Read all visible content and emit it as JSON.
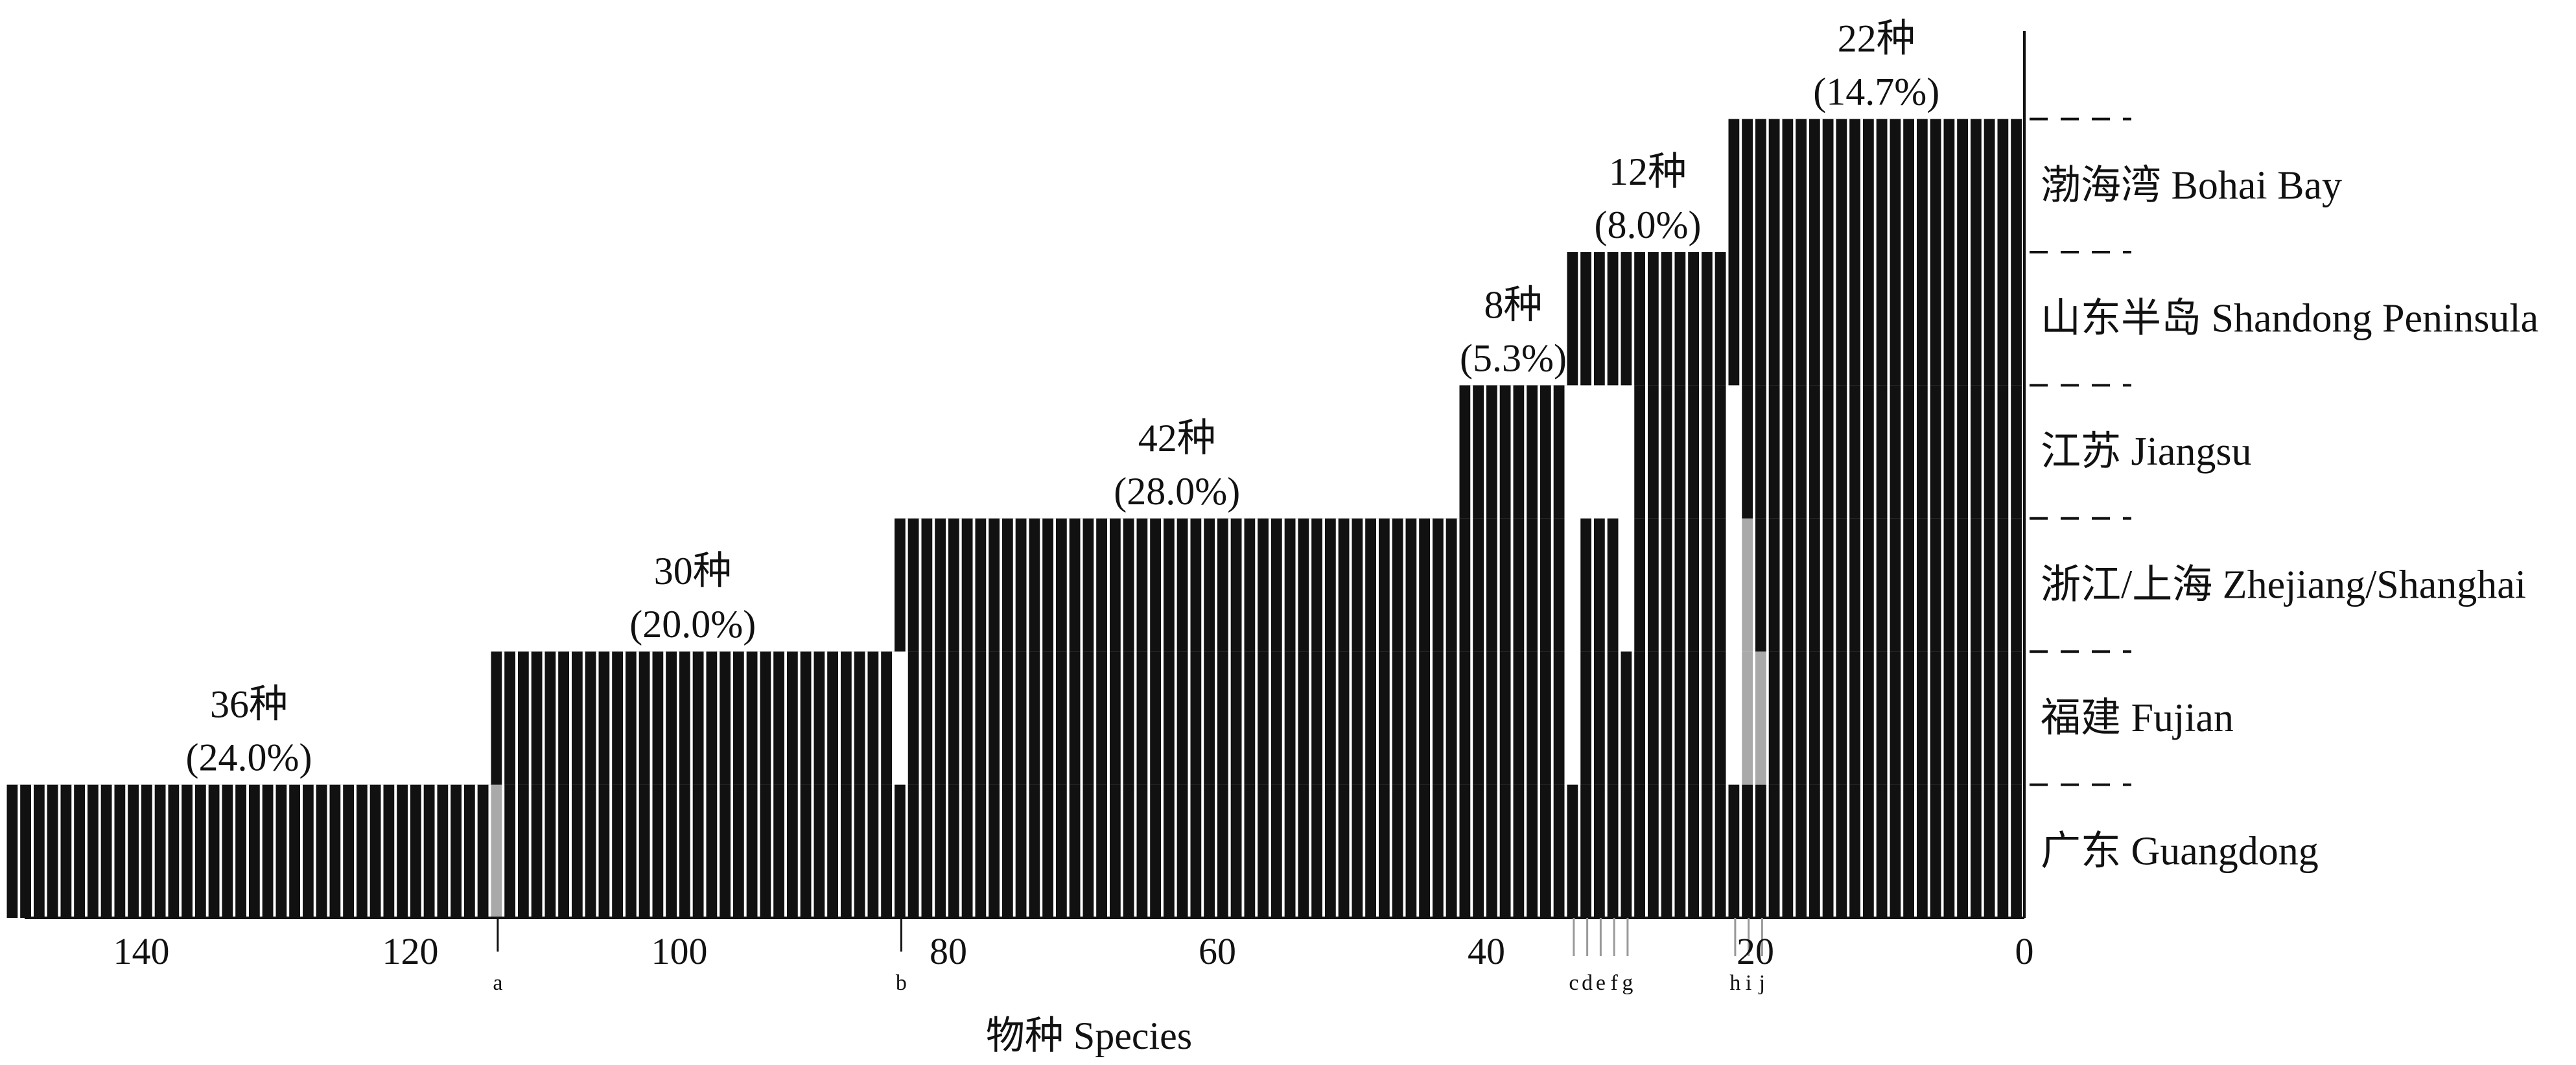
{
  "chart_data": {
    "type": "bar",
    "orientation": "vertical, x-axis reversed (150 on the left, 0 on the right)",
    "xlabel": "物种 Species",
    "xlim": [
      150,
      0
    ],
    "x_ticks": [
      "140",
      "120",
      "100",
      "80",
      "60",
      "40",
      "20",
      "0"
    ],
    "x_tick_values": [
      140,
      120,
      100,
      80,
      60,
      40,
      20,
      0
    ],
    "y_categories": [
      "广东 Guangdong",
      "福建 Fujian",
      "浙江/上海 Zhejiang/Shanghai",
      "江苏 Jiangsu",
      "山东半岛 Shandong Peninsula",
      "渤海湾 Bohai Bay"
    ],
    "species_groups": [
      {
        "count_label": "36种",
        "percent_label": "(24.0%)",
        "species": 36,
        "species_range": [
          150,
          114
        ],
        "top_region_index": 0
      },
      {
        "count_label": "30种",
        "percent_label": "(20.0%)",
        "species": 30,
        "species_range": [
          114,
          84
        ],
        "top_region_index": 1
      },
      {
        "count_label": "42种",
        "percent_label": "(28.0%)",
        "species": 42,
        "species_range": [
          84,
          42
        ],
        "top_region_index": 2
      },
      {
        "count_label": "8种",
        "percent_label": "(5.3%)",
        "species": 8,
        "species_range": [
          42,
          34
        ],
        "top_region_index": 3
      },
      {
        "count_label": "12种",
        "percent_label": "(8.0%)",
        "species": 12,
        "species_range": [
          34,
          22
        ],
        "top_region_index": 4
      },
      {
        "count_label": "22种",
        "percent_label": "(14.7%)",
        "species": 22,
        "species_range": [
          22,
          0
        ],
        "top_region_index": 5
      }
    ],
    "gaps": [
      {
        "species": 83.5,
        "regions": [
          1
        ]
      },
      {
        "species": 33.5,
        "regions": [
          1,
          2,
          3
        ]
      },
      {
        "species": 32.5,
        "regions": [
          3
        ]
      },
      {
        "species": 31.5,
        "regions": [
          3
        ]
      },
      {
        "species": 30.5,
        "regions": [
          3
        ]
      },
      {
        "species": 29.5,
        "regions": [
          2,
          3
        ]
      },
      {
        "species": 21.5,
        "regions": [
          1,
          2,
          3
        ]
      }
    ],
    "grey_segments": [
      {
        "species": 113.5,
        "regions": [
          0
        ]
      },
      {
        "species": 20.5,
        "regions": [
          1,
          2
        ]
      },
      {
        "species": 19.5,
        "regions": [
          1
        ]
      }
    ],
    "markers": [
      {
        "label": "a",
        "species": 113.5
      },
      {
        "label": "b",
        "species": 83.5
      },
      {
        "label": "c",
        "species": 33.5
      },
      {
        "label": "d",
        "species": 32.5
      },
      {
        "label": "e",
        "species": 31.5
      },
      {
        "label": "f",
        "species": 30.5
      },
      {
        "label": "g",
        "species": 29.5
      },
      {
        "label": "h",
        "species": 21.5
      },
      {
        "label": "i",
        "species": 20.5
      },
      {
        "label": "j",
        "species": 19.5
      }
    ],
    "colors": {
      "bar": "#111111",
      "grey": "#a9a9a9",
      "background": "#ffffff",
      "divider": "#ffffff"
    }
  }
}
